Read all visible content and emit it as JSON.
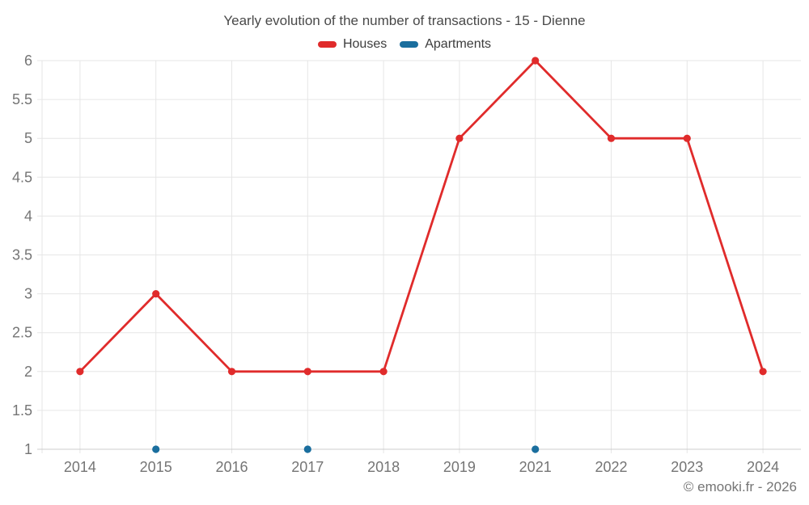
{
  "page": {
    "title": "Yearly evolution of the number of transactions - 15 - Dienne",
    "attribution": "© emooki.fr - 2026"
  },
  "chart_data": {
    "type": "line",
    "title": "Yearly evolution of the number of transactions - 15 - Dienne",
    "categories": [
      "2014",
      "2015",
      "2016",
      "2017",
      "2018",
      "2019",
      "2021",
      "2022",
      "2023",
      "2024"
    ],
    "series": [
      {
        "name": "Houses",
        "color": "#e02b2b",
        "values": [
          2,
          3,
          2,
          2,
          2,
          5,
          6,
          5,
          5,
          2
        ]
      },
      {
        "name": "Apartments",
        "color": "#1a6e9e",
        "values": [
          null,
          1,
          null,
          1,
          null,
          null,
          1,
          null,
          null,
          null
        ]
      }
    ],
    "xlabel": "",
    "ylabel": "",
    "ylim": [
      1,
      6
    ],
    "ytick_step": 0.5,
    "ytick_labels": [
      "1",
      "1.5",
      "2",
      "2.5",
      "3",
      "3.5",
      "4",
      "4.5",
      "5",
      "5.5",
      "6"
    ],
    "grid": true,
    "legend_position": "top"
  },
  "colors": {
    "houses": "#e02b2b",
    "apartments": "#1a6e9e"
  }
}
